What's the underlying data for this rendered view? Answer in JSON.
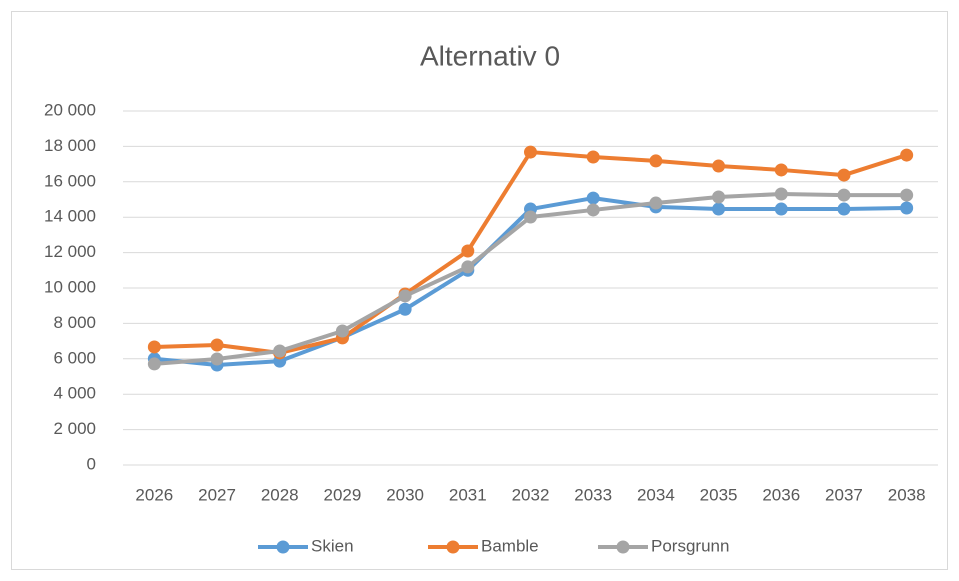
{
  "chart_data": {
    "type": "line",
    "title": "Alternativ 0",
    "categories": [
      "2026",
      "2027",
      "2028",
      "2029",
      "2030",
      "2031",
      "2032",
      "2033",
      "2034",
      "2035",
      "2036",
      "2037",
      "2038"
    ],
    "series": [
      {
        "name": "Skien",
        "color": "#5b9bd5",
        "values": [
          6000,
          5650,
          5870,
          7200,
          8800,
          11000,
          14460,
          15080,
          14580,
          14460,
          14460,
          14460,
          14520
        ]
      },
      {
        "name": "Bamble",
        "color": "#ed7d31",
        "values": [
          6670,
          6780,
          6330,
          7180,
          9660,
          12090,
          17680,
          17400,
          17180,
          16890,
          16670,
          16380,
          17510
        ]
      },
      {
        "name": "Porsgrunn",
        "color": "#a5a5a5",
        "values": [
          5710,
          5990,
          6440,
          7570,
          9550,
          11190,
          14010,
          14410,
          14800,
          15140,
          15310,
          15250,
          15250
        ]
      }
    ],
    "ylim": [
      0,
      20000
    ],
    "yticks": [
      0,
      {
        "value": 2000,
        "label": "2 000"
      },
      {
        "value": 4000,
        "label": "4 000"
      },
      {
        "value": 6000,
        "label": "6 000"
      },
      {
        "value": 8000,
        "label": "8 000"
      },
      {
        "value": 10000,
        "label": "10 000"
      },
      {
        "value": 12000,
        "label": "12 000"
      },
      {
        "value": 14000,
        "label": "14 000"
      },
      {
        "value": 16000,
        "label": "16 000"
      },
      {
        "value": 18000,
        "label": "18 000"
      },
      {
        "value": 20000,
        "label": "20 000"
      }
    ],
    "grid": true,
    "legend": "bottom"
  }
}
